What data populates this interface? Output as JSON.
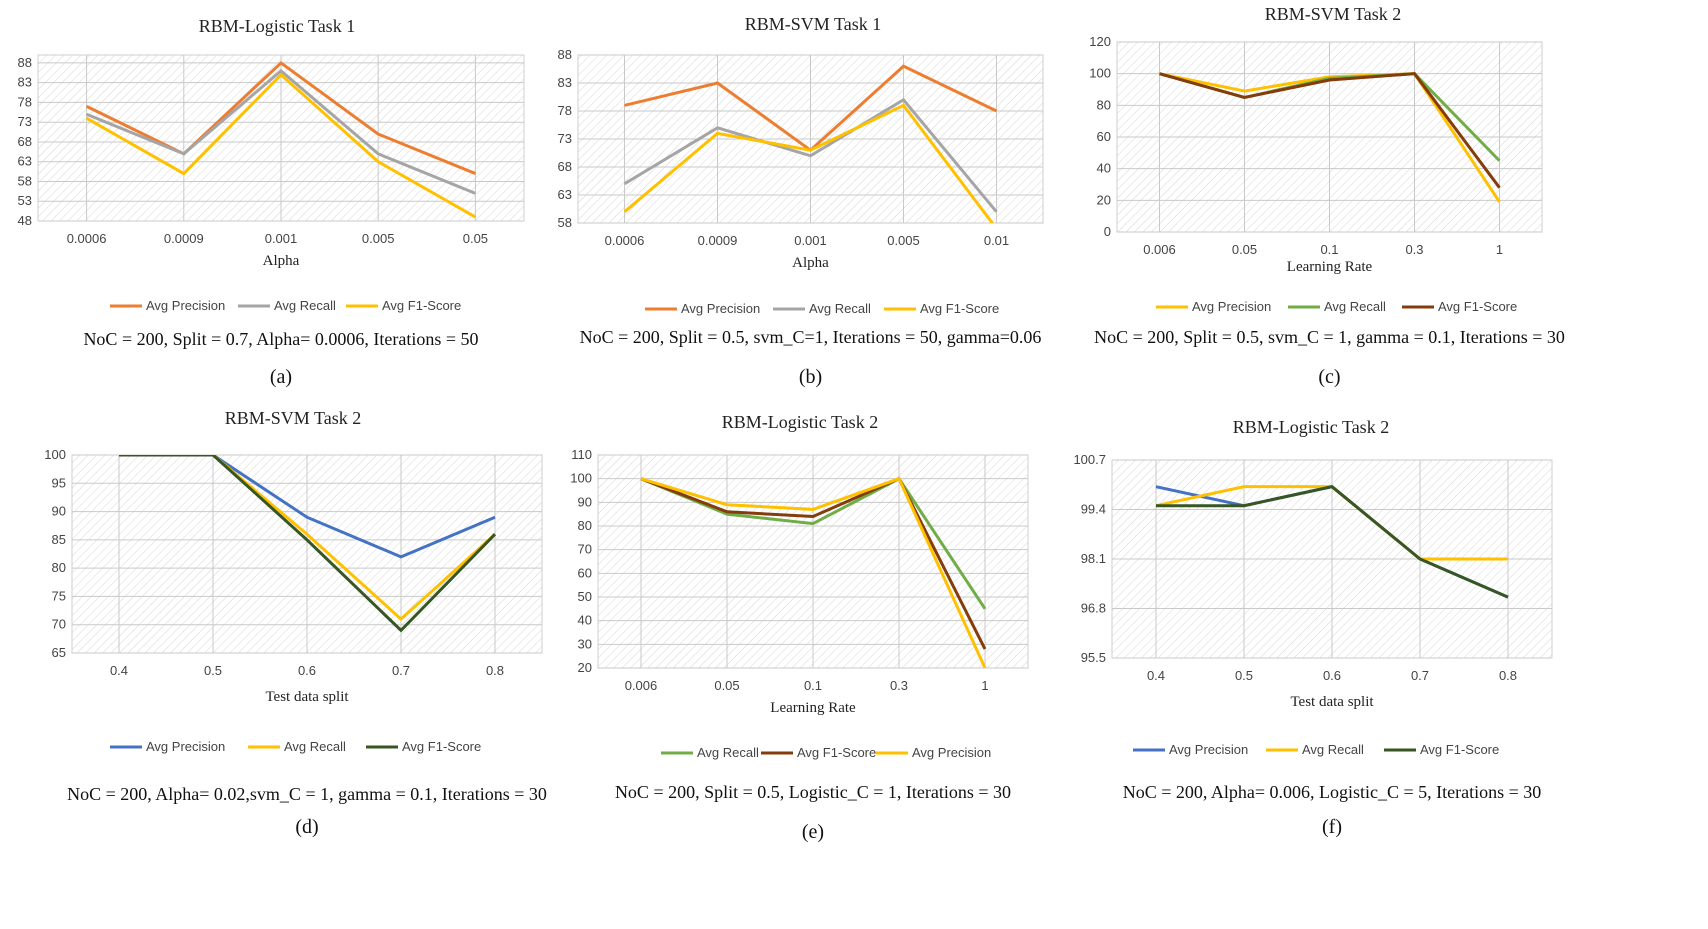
{
  "chart_data": [
    {
      "type": "line",
      "title": "RBM-Logistic Task 1",
      "categories": [
        "0.0006",
        "0.0009",
        "0.001",
        "0.005",
        "0.05"
      ],
      "xlabel": "Alpha",
      "ylabel": "",
      "ylim": [
        48,
        90
      ],
      "yticks": [
        "48",
        "53",
        "58",
        "63",
        "68",
        "73",
        "78",
        "83",
        "88"
      ],
      "series": [
        {
          "name": "Avg Precision",
          "color": "#ED7D31",
          "values": [
            77,
            65,
            88,
            70,
            60
          ]
        },
        {
          "name": "Avg Recall",
          "color": "#A5A5A5",
          "values": [
            75,
            65,
            86,
            65,
            55
          ]
        },
        {
          "name": "Avg F1-Score",
          "color": "#FFC000",
          "values": [
            74,
            60,
            85,
            63,
            49
          ]
        }
      ],
      "caption": "NoC = 200, Split = 0.7, Alpha= 0.0006, Iterations = 50",
      "label": "(a)"
    },
    {
      "type": "line",
      "title": "RBM-SVM Task 1",
      "categories": [
        "0.0006",
        "0.0009",
        "0.001",
        "0.005",
        "0.01"
      ],
      "xlabel": "Alpha",
      "ylabel": "",
      "ylim": [
        58,
        88
      ],
      "yticks": [
        "58",
        "63",
        "68",
        "73",
        "78",
        "83",
        "88"
      ],
      "series": [
        {
          "name": "Avg Precision",
          "color": "#ED7D31",
          "values": [
            79,
            83,
            71,
            86,
            78
          ]
        },
        {
          "name": "Avg Recall",
          "color": "#A5A5A5",
          "values": [
            65,
            75,
            70,
            80,
            60
          ]
        },
        {
          "name": "Avg F1-Score",
          "color": "#FFC000",
          "values": [
            60,
            74,
            71,
            79,
            57
          ]
        }
      ],
      "caption": "NoC = 200, Split = 0.5, svm_C=1, Iterations = 50, gamma=0.06",
      "label": "(b)"
    },
    {
      "type": "line",
      "title": "RBM-SVM Task 2",
      "categories": [
        "0.006",
        "0.05",
        "0.1",
        "0.3",
        "1"
      ],
      "xlabel": "Learning Rate",
      "ylabel": "",
      "ylim": [
        0,
        120
      ],
      "yticks": [
        "0",
        "20",
        "40",
        "60",
        "80",
        "100",
        "120"
      ],
      "series": [
        {
          "name": "Avg Precision",
          "color": "#FFC000",
          "values": [
            100,
            89,
            98,
            100,
            19
          ]
        },
        {
          "name": "Avg Recall",
          "color": "#70AD47",
          "values": [
            100,
            85,
            97,
            100,
            45
          ]
        },
        {
          "name": "Avg F1-Score",
          "color": "#843C0C",
          "values": [
            100,
            85,
            96,
            100,
            28
          ]
        }
      ],
      "caption": "NoC = 200, Split = 0.5, svm_C = 1, gamma = 0.1, Iterations = 30",
      "label": "(c)"
    },
    {
      "type": "line",
      "title": "RBM-SVM Task 2",
      "categories": [
        "0.4",
        "0.5",
        "0.6",
        "0.7",
        "0.8"
      ],
      "xlabel": "Test data split",
      "ylabel": "",
      "ylim": [
        65,
        100
      ],
      "yticks": [
        "65",
        "70",
        "75",
        "80",
        "85",
        "90",
        "95",
        "100"
      ],
      "series": [
        {
          "name": "Avg Precision",
          "color": "#4472C4",
          "values": [
            100,
            100,
            89,
            82,
            89
          ]
        },
        {
          "name": "Avg Recall",
          "color": "#FFC000",
          "values": [
            100,
            100,
            86,
            71,
            86
          ]
        },
        {
          "name": "Avg F1-Score",
          "color": "#375623",
          "values": [
            100,
            100,
            85,
            69,
            86
          ]
        }
      ],
      "caption": "NoC = 200, Alpha= 0.02,svm_C = 1, gamma = 0.1, Iterations = 30",
      "label": "(d)"
    },
    {
      "type": "line",
      "title": "RBM-Logistic Task 2",
      "categories": [
        "0.006",
        "0.05",
        "0.1",
        "0.3",
        "1"
      ],
      "xlabel": "Learning Rate",
      "ylabel": "",
      "ylim": [
        20,
        110
      ],
      "yticks": [
        "20",
        "30",
        "40",
        "50",
        "60",
        "70",
        "80",
        "90",
        "100",
        "110"
      ],
      "series": [
        {
          "name": "Avg Recall",
          "color": "#70AD47",
          "values": [
            100,
            85,
            81,
            100,
            45
          ]
        },
        {
          "name": "Avg F1-Score",
          "color": "#843C0C",
          "values": [
            100,
            86,
            84,
            100,
            28
          ]
        },
        {
          "name": "Avg Precision",
          "color": "#FFC000",
          "values": [
            100,
            89,
            87,
            100,
            20
          ]
        }
      ],
      "caption": "NoC = 200, Split = 0.5, Logistic_C = 1, Iterations = 30",
      "label": "(e)"
    },
    {
      "type": "line",
      "title": "RBM-Logistic Task 2",
      "categories": [
        "0.4",
        "0.5",
        "0.6",
        "0.7",
        "0.8"
      ],
      "xlabel": "Test data split",
      "ylabel": "",
      "ylim": [
        95.5,
        100.7
      ],
      "yticks": [
        "95.5",
        "96.8",
        "98.1",
        "99.4",
        "100.7"
      ],
      "series": [
        {
          "name": "Avg Precision",
          "color": "#4472C4",
          "values": [
            100,
            99.5,
            100,
            98.1,
            97.1
          ]
        },
        {
          "name": "Avg Recall",
          "color": "#FFC000",
          "values": [
            99.5,
            100,
            100,
            98.1,
            98.1
          ]
        },
        {
          "name": "Avg F1-Score",
          "color": "#375623",
          "values": [
            99.5,
            99.5,
            100,
            98.1,
            97.1
          ]
        }
      ],
      "caption": "NoC = 200, Alpha= 0.006, Logistic_C = 5, Iterations = 30",
      "label": "(f)"
    }
  ]
}
